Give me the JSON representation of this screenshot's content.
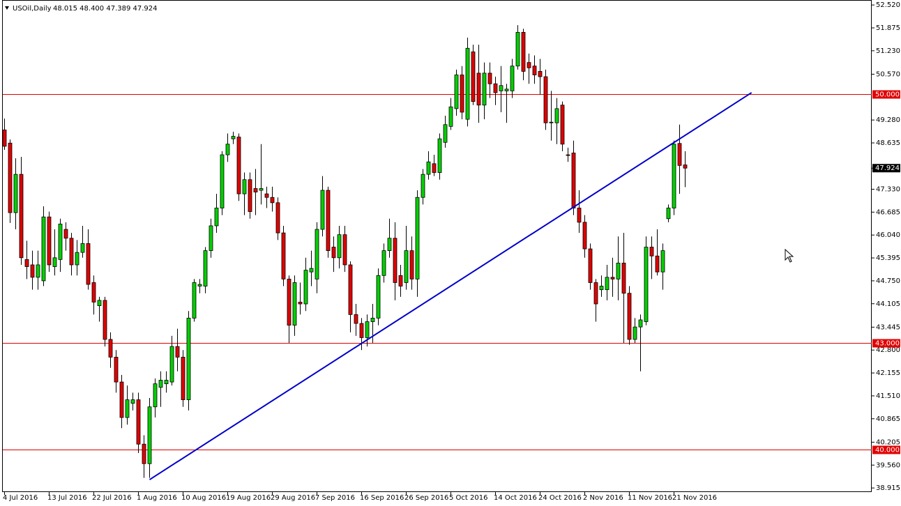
{
  "chart_data": {
    "type": "candlestick",
    "title": "USOil,Daily",
    "subtitle": "48.015 48.400 47.389 47.924",
    "x": [
      "4 Jul 2016",
      null,
      null,
      null,
      null,
      null,
      null,
      null,
      "13 Jul 2016",
      null,
      null,
      null,
      null,
      null,
      null,
      null,
      "22 Jul 2016",
      null,
      null,
      null,
      null,
      null,
      null,
      null,
      "1 Aug 2016",
      null,
      null,
      null,
      null,
      null,
      null,
      null,
      "10 Aug 2016",
      null,
      null,
      null,
      null,
      null,
      null,
      null,
      "19 Aug 2016",
      null,
      null,
      null,
      null,
      null,
      null,
      null,
      "29 Aug 2016",
      null,
      null,
      null,
      null,
      null,
      null,
      null,
      "7 Sep 2016",
      null,
      null,
      null,
      null,
      null,
      null,
      null,
      "16 Sep 2016",
      null,
      null,
      null,
      null,
      null,
      null,
      null,
      "26 Sep 2016",
      null,
      null,
      null,
      null,
      null,
      null,
      null,
      "5 Oct 2016",
      null,
      null,
      null,
      null,
      null,
      null,
      null,
      "14 Oct 2016",
      null,
      null,
      null,
      null,
      null,
      null,
      null,
      "24 Oct 2016",
      null,
      null,
      null,
      null,
      null,
      null,
      null,
      "2 Nov 2016",
      null,
      null,
      null,
      null,
      null,
      null,
      null,
      "11 Nov 2016",
      null,
      null,
      null,
      null,
      null,
      null,
      null,
      "21 Nov 2016",
      null,
      null
    ],
    "open": [
      49.0,
      48.63,
      46.67,
      47.75,
      45.35,
      45.2,
      44.85,
      44.75,
      46.55,
      45.15,
      45.35,
      46.2,
      45.95,
      45.2,
      45.55,
      45.8,
      44.7,
      44.05,
      44.2,
      43.1,
      42.6,
      41.9,
      40.9,
      41.3,
      41.4,
      40.15,
      39.6,
      41.2,
      41.75,
      41.85,
      41.9,
      42.9,
      42.6,
      41.4,
      43.7,
      44.6,
      44.6,
      45.6,
      46.3,
      46.8,
      48.3,
      48.75,
      48.8,
      47.2,
      47.6,
      47.35,
      47.3,
      47.2,
      47.1,
      46.95,
      46.1,
      44.8,
      43.5,
      44.15,
      44.1,
      45.0,
      44.8,
      46.2,
      47.3,
      45.7,
      45.4,
      46.05,
      45.2,
      43.8,
      43.55,
      43.15,
      43.6,
      43.7,
      44.9,
      45.6,
      45.95,
      44.9,
      44.7,
      45.6,
      44.8,
      47.1,
      47.75,
      48.05,
      47.8,
      48.65,
      49.1,
      49.6,
      50.55,
      49.3,
      51.2,
      50.6,
      49.7,
      50.6,
      50.3,
      50.1,
      50.1,
      50.1,
      50.8,
      51.75,
      50.9,
      50.8,
      50.65,
      50.5,
      49.2,
      49.2,
      49.7,
      48.3,
      48.35,
      46.8,
      46.4,
      45.65,
      44.7,
      44.5,
      44.5,
      44.85,
      44.8,
      45.25,
      44.4,
      43.1,
      43.45,
      43.6,
      45.7,
      45.45,
      45.0,
      46.5,
      46.8,
      48.62,
      48.015
    ],
    "high": [
      49.32,
      48.73,
      48.2,
      48.24,
      45.88,
      45.6,
      45.6,
      46.85,
      46.7,
      46.2,
      46.5,
      46.4,
      46.1,
      45.9,
      46.3,
      46.2,
      44.9,
      44.3,
      44.3,
      43.3,
      42.8,
      42.1,
      41.8,
      41.6,
      41.6,
      40.4,
      41.45,
      42.0,
      42.2,
      42.2,
      43.2,
      43.4,
      42.8,
      43.9,
      44.8,
      44.8,
      45.7,
      46.5,
      47.2,
      48.4,
      48.9,
      48.95,
      48.9,
      47.8,
      47.8,
      47.9,
      48.6,
      47.4,
      47.4,
      47.1,
      46.3,
      44.9,
      44.9,
      44.7,
      45.4,
      45.6,
      46.4,
      47.7,
      47.4,
      46.0,
      46.3,
      46.3,
      45.3,
      44.1,
      43.7,
      43.8,
      44.1,
      45.1,
      45.8,
      46.5,
      46.4,
      45.2,
      46.3,
      46.0,
      47.3,
      47.9,
      48.4,
      48.3,
      48.9,
      49.4,
      49.9,
      50.7,
      50.8,
      51.6,
      51.4,
      51.4,
      50.9,
      50.9,
      50.5,
      50.8,
      50.3,
      51.0,
      51.95,
      51.85,
      51.15,
      51.1,
      51.0,
      50.7,
      50.1,
      49.9,
      49.8,
      48.5,
      48.7,
      47.3,
      46.6,
      45.8,
      44.8,
      44.9,
      45.2,
      45.4,
      46.0,
      46.1,
      44.6,
      43.7,
      43.8,
      46.0,
      46.0,
      46.2,
      45.8,
      46.9,
      48.7,
      49.15,
      48.4
    ],
    "low": [
      48.44,
      46.38,
      46.2,
      45.2,
      44.8,
      44.5,
      44.5,
      44.6,
      45.0,
      44.9,
      45.0,
      45.6,
      44.9,
      44.9,
      45.4,
      44.5,
      43.8,
      43.6,
      42.9,
      42.3,
      41.6,
      40.6,
      40.7,
      41.1,
      39.9,
      39.2,
      39.2,
      40.9,
      41.2,
      41.6,
      41.8,
      42.2,
      41.2,
      41.1,
      43.6,
      44.4,
      44.4,
      45.4,
      46.1,
      46.6,
      48.1,
      48.6,
      47.0,
      46.6,
      46.5,
      46.6,
      46.9,
      46.8,
      46.7,
      45.9,
      44.6,
      43.0,
      43.2,
      43.8,
      43.9,
      44.6,
      44.4,
      46.0,
      45.4,
      45.0,
      45.1,
      45.0,
      43.3,
      43.2,
      42.8,
      42.9,
      43.0,
      43.5,
      44.7,
      45.4,
      44.2,
      44.3,
      44.5,
      44.5,
      44.3,
      46.9,
      47.6,
      47.7,
      47.6,
      48.5,
      49.0,
      49.4,
      49.3,
      49.1,
      49.7,
      49.2,
      49.3,
      49.9,
      49.7,
      49.5,
      49.2,
      49.9,
      50.7,
      50.4,
      50.3,
      50.3,
      50.0,
      49.0,
      48.7,
      48.6,
      48.4,
      48.1,
      46.6,
      46.1,
      45.4,
      44.5,
      43.6,
      44.3,
      44.2,
      44.3,
      44.2,
      43.0,
      42.95,
      43.0,
      42.2,
      43.5,
      44.8,
      44.9,
      44.5,
      46.4,
      46.6,
      47.2,
      47.389
    ],
    "close": [
      48.54,
      46.67,
      47.75,
      45.4,
      45.15,
      44.85,
      45.2,
      46.55,
      45.2,
      45.4,
      46.35,
      45.95,
      45.2,
      45.55,
      45.8,
      44.65,
      44.15,
      44.2,
      43.1,
      42.6,
      41.9,
      40.9,
      41.4,
      41.4,
      40.15,
      39.6,
      41.2,
      41.85,
      41.95,
      41.95,
      42.9,
      42.6,
      41.4,
      43.7,
      44.7,
      44.65,
      45.6,
      46.3,
      46.8,
      48.3,
      48.6,
      48.82,
      47.2,
      47.6,
      46.7,
      47.25,
      47.35,
      47.1,
      46.95,
      46.1,
      44.8,
      43.5,
      44.7,
      44.1,
      45.05,
      45.1,
      46.2,
      47.3,
      45.6,
      45.4,
      46.05,
      45.2,
      43.8,
      43.55,
      43.15,
      43.6,
      43.7,
      44.9,
      45.6,
      45.95,
      44.7,
      44.6,
      45.6,
      44.8,
      47.1,
      47.75,
      48.1,
      47.8,
      48.75,
      49.15,
      49.65,
      50.55,
      49.5,
      51.3,
      49.8,
      49.7,
      50.6,
      50.3,
      50.05,
      50.25,
      50.15,
      50.8,
      51.75,
      50.65,
      50.75,
      50.55,
      50.5,
      49.2,
      49.22,
      49.6,
      48.6,
      48.28,
      46.8,
      46.4,
      45.65,
      44.7,
      44.1,
      44.6,
      44.85,
      44.8,
      45.25,
      44.4,
      43.1,
      43.45,
      43.65,
      45.7,
      45.45,
      45.0,
      45.6,
      46.8,
      48.6,
      48.0,
      47.924
    ],
    "up_color": "#00d000",
    "down_color": "#e00000",
    "ylim": [
      38.8,
      52.66
    ],
    "yticks": [
      {
        "value": 52.52,
        "label": "52.520"
      },
      {
        "value": 51.875,
        "label": "51.875"
      },
      {
        "value": 51.23,
        "label": "51.230"
      },
      {
        "value": 50.57,
        "label": "50.570"
      },
      {
        "value": 49.28,
        "label": "49.280"
      },
      {
        "value": 48.635,
        "label": "48.635"
      },
      {
        "value": 47.33,
        "label": "47.330"
      },
      {
        "value": 46.685,
        "label": "46.685"
      },
      {
        "value": 46.04,
        "label": "46.040"
      },
      {
        "value": 45.395,
        "label": "45.395"
      },
      {
        "value": 44.75,
        "label": "44.750"
      },
      {
        "value": 44.105,
        "label": "44.105"
      },
      {
        "value": 43.445,
        "label": "43.445"
      },
      {
        "value": 42.8,
        "label": "42.800"
      },
      {
        "value": 42.155,
        "label": "42.155"
      },
      {
        "value": 41.51,
        "label": "41.510"
      },
      {
        "value": 40.865,
        "label": "40.865"
      },
      {
        "value": 40.205,
        "label": "40.205"
      },
      {
        "value": 39.56,
        "label": "39.560"
      },
      {
        "value": 38.915,
        "label": "38.915"
      }
    ],
    "hlines": [
      {
        "value": 50,
        "label": "50.000"
      },
      {
        "value": 43,
        "label": "43.000"
      },
      {
        "value": 40,
        "label": "40.000"
      }
    ],
    "hline_color": "#e00000",
    "last_price": {
      "value": 47.924,
      "label": "47.924"
    },
    "trendline": {
      "x": [
        26,
        133.9
      ],
      "y": [
        39.15,
        50.05
      ],
      "color": "#0000cc"
    }
  }
}
